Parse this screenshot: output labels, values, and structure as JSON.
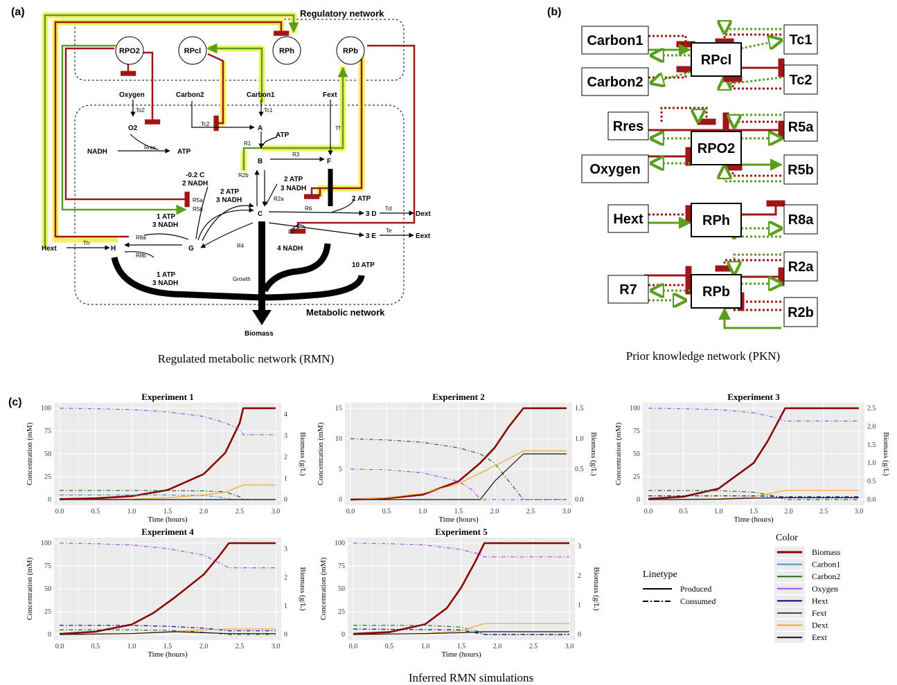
{
  "panels": {
    "a": "(a)",
    "b": "(b)",
    "c": "(c)"
  },
  "captions": {
    "rmn": "Regulated metabolic network (RMN)",
    "pkn": "Prior knowledge network (PKN)",
    "sim": "Inferred RMN simulations"
  },
  "rmn": {
    "regulatory_label": "Regulatory network",
    "metabolic_label": "Metabolic network",
    "regulators": [
      "RPO2",
      "RPcl",
      "RPh",
      "RPb"
    ],
    "metabolites": {
      "oxygen": "Oxygen",
      "carbon2": "Carbon2",
      "carbon1": "Carbon1",
      "fext": "Fext",
      "o2": "O2",
      "nadh": "NADH",
      "atp": "ATP",
      "a": "A",
      "atp2": "ATP",
      "b": "B",
      "f": "F",
      "c": "C",
      "g": "G",
      "h": "H",
      "hext": "Hext",
      "d": "3 D",
      "e": "3 E",
      "dext": "Dext",
      "eext": "Eext",
      "biomass": "Biomass",
      "m02c": "-0.2 C",
      "m2nadh": "2 NADH",
      "m2atp3nadh_a": "2 ATP",
      "m3nadh_a": "3 NADH",
      "m2atp_b": "2 ATP",
      "m3nadh_b": "3 NADH",
      "m2atp_c": "2 ATP",
      "m1atp_a": "1 ATP",
      "m3nadh_c": "3 NADH",
      "m1atp_b": "1 ATP",
      "m3nadh_d": "3 NADH",
      "m4nadh": "4 NADH",
      "m10atp": "10 ATP"
    },
    "reactions": {
      "to2": "To2",
      "tc2": "Tc2",
      "tc1": "Tc1",
      "tf": "Tf",
      "rres": "Rres",
      "r1": "R1",
      "r2b": "R2b",
      "r3": "R3",
      "r2a": "R2a",
      "r5a": "R5a",
      "r5b": "R5b",
      "r6": "R6",
      "td": "Td",
      "r7": "R7",
      "te": "Te",
      "r8a": "R8a",
      "r8b": "R8b",
      "th": "Th",
      "r4": "R4",
      "growth": "Growth"
    }
  },
  "pkn": {
    "regulators": [
      "RPcl",
      "RPO2",
      "RPh",
      "RPb"
    ],
    "left_nodes": [
      "Carbon1",
      "Carbon2",
      "Rres",
      "Oxygen",
      "Hext",
      "R7"
    ],
    "right_nodes": [
      "Tc1",
      "Tc2",
      "R5a",
      "R5b",
      "R8a",
      "R2a",
      "R2b"
    ]
  },
  "colors": {
    "activation": "#5a9e1e",
    "inhibition": "#a01515",
    "highlight": "#f2f260",
    "Biomass": "#8b0000",
    "Carbon1": "#4a8fd0",
    "Carbon2": "#1e6b1e",
    "Oxygen": "#a54ee8",
    "Hext": "#00008b",
    "Fext": "#2f4f4f",
    "Dext": "#f5a623",
    "Eext": "#111111"
  },
  "legend": {
    "linetype_title": "Linetype",
    "linetypes": [
      "Produced",
      "Consumed"
    ],
    "color_title": "Color",
    "colors": [
      "Biomass",
      "Carbon1",
      "Carbon2",
      "Oxygen",
      "Hext",
      "Fext",
      "Dext",
      "Eext"
    ]
  },
  "chart_data": [
    {
      "type": "line",
      "title": "Experiment 1",
      "xlabel": "Time (hours)",
      "ylabel": "Concentration (mM)",
      "y2label": "Biomass (g/L)",
      "xlim": [
        0,
        3
      ],
      "ylim": [
        0,
        100
      ],
      "y2lim": [
        0,
        4.3
      ],
      "xticks": [
        "0.0",
        "0.5",
        "1.0",
        "1.5",
        "2.0",
        "2.5",
        "3.0"
      ],
      "yticks": [
        "0",
        "25",
        "50",
        "75",
        "100"
      ],
      "y2ticks": [
        "0",
        "1",
        "2",
        "3",
        "4"
      ],
      "series": [
        {
          "name": "Biomass",
          "axis": "right",
          "style": "solid",
          "x": [
            0,
            0.5,
            1.0,
            1.5,
            2.0,
            2.3,
            2.5,
            2.55,
            3.0
          ],
          "y": [
            0.02,
            0.06,
            0.16,
            0.45,
            1.2,
            2.2,
            3.6,
            4.3,
            4.3
          ]
        },
        {
          "name": "Oxygen",
          "style": "dashed",
          "x": [
            0,
            0.5,
            1.0,
            1.5,
            2.0,
            2.3,
            2.5,
            2.55,
            3.0
          ],
          "y": [
            100,
            99.5,
            98.5,
            96,
            91,
            84,
            77,
            71,
            71
          ]
        },
        {
          "name": "Carbon2",
          "style": "dashed",
          "x": [
            0,
            1.0,
            2.0,
            2.3,
            2.5,
            2.55,
            3.0
          ],
          "y": [
            10,
            10,
            9.5,
            8.5,
            3,
            0,
            0
          ]
        },
        {
          "name": "Carbon1",
          "style": "dashed",
          "x": [
            0,
            1.5,
            2.0,
            2.2,
            2.4,
            3.0
          ],
          "y": [
            5,
            5,
            4.5,
            3,
            0,
            0
          ]
        },
        {
          "name": "Dext",
          "style": "solid",
          "x": [
            0,
            1.0,
            1.5,
            2.0,
            2.3,
            2.55,
            3.0
          ],
          "y": [
            0,
            0.5,
            2,
            5,
            8,
            16,
            16
          ]
        },
        {
          "name": "Eext",
          "style": "solid",
          "x": [
            0,
            3.0
          ],
          "y": [
            0,
            0
          ]
        }
      ]
    },
    {
      "type": "line",
      "title": "Experiment 2",
      "xlabel": "Time (hours)",
      "ylabel": "Concentration (mM)",
      "y2label": "Biomass (g/L)",
      "xlim": [
        0,
        3
      ],
      "ylim": [
        0,
        15
      ],
      "y2lim": [
        0,
        1.5
      ],
      "xticks": [
        "0.0",
        "0.5",
        "1.0",
        "1.5",
        "2.0",
        "2.5",
        "3.0"
      ],
      "yticks": [
        "0",
        "5",
        "10",
        "15"
      ],
      "y2ticks": [
        "0.0",
        "0.5",
        "1.0",
        "1.5"
      ],
      "series": [
        {
          "name": "Biomass",
          "axis": "right",
          "style": "solid",
          "x": [
            0,
            0.5,
            1.0,
            1.5,
            1.8,
            2.0,
            2.2,
            2.4,
            3.0
          ],
          "y": [
            0.0,
            0.02,
            0.08,
            0.3,
            0.6,
            0.85,
            1.2,
            1.5,
            1.5
          ]
        },
        {
          "name": "Carbon2",
          "style": "dashed",
          "x": [
            0,
            0.5,
            1.0,
            1.5,
            1.8,
            2.0,
            2.2,
            2.4,
            3.0
          ],
          "y": [
            10,
            9.8,
            9.4,
            8.5,
            7.5,
            6,
            3,
            0,
            0
          ]
        },
        {
          "name": "Oxygen",
          "style": "dashed",
          "x": [
            0,
            0.5,
            1.0,
            1.5,
            1.7,
            1.8,
            3.0
          ],
          "y": [
            5,
            4.9,
            4.4,
            3,
            1.5,
            0,
            0
          ]
        },
        {
          "name": "Dext",
          "style": "solid",
          "x": [
            0,
            0.5,
            1.0,
            1.5,
            2.0,
            2.4,
            3.0
          ],
          "y": [
            0,
            0.3,
            1,
            2.6,
            5.5,
            8,
            8
          ]
        },
        {
          "name": "Eext",
          "style": "solid",
          "x": [
            0,
            1.8,
            2.0,
            2.4,
            3.0
          ],
          "y": [
            0,
            0,
            3,
            7.5,
            7.5
          ]
        }
      ]
    },
    {
      "type": "line",
      "title": "Experiment 3",
      "xlabel": "Time (hours)",
      "ylabel": "Concentration (mM)",
      "y2label": "Biomass (g/L)",
      "xlim": [
        0,
        3
      ],
      "ylim": [
        0,
        100
      ],
      "y2lim": [
        0,
        2.5
      ],
      "xticks": [
        "0.0",
        "0.5",
        "1.0",
        "1.5",
        "2.0",
        "2.5",
        "3.0"
      ],
      "yticks": [
        "0",
        "25",
        "50",
        "75",
        "100"
      ],
      "y2ticks": [
        "0.0",
        "0.5",
        "1.0",
        "1.5",
        "2.0",
        "2.5"
      ],
      "series": [
        {
          "name": "Biomass",
          "axis": "right",
          "style": "solid",
          "x": [
            0,
            0.5,
            1.0,
            1.5,
            1.7,
            1.95,
            3.0
          ],
          "y": [
            0.02,
            0.08,
            0.3,
            1.0,
            1.6,
            2.5,
            2.5
          ]
        },
        {
          "name": "Oxygen",
          "style": "dashed",
          "x": [
            0,
            0.5,
            1.0,
            1.5,
            1.8,
            1.95,
            3.0
          ],
          "y": [
            100,
            99.5,
            98.5,
            95,
            90,
            86,
            86
          ]
        },
        {
          "name": "Carbon2",
          "style": "dashed",
          "x": [
            0,
            1.0,
            1.5,
            1.8,
            1.95,
            3.0
          ],
          "y": [
            10,
            9.8,
            8,
            4,
            0,
            0
          ]
        },
        {
          "name": "Hext",
          "style": "dashed",
          "x": [
            0,
            1.5,
            1.95,
            3.0
          ],
          "y": [
            4,
            4,
            3,
            3
          ]
        },
        {
          "name": "Dext",
          "style": "solid",
          "x": [
            0,
            1.0,
            1.5,
            1.95,
            3.0
          ],
          "y": [
            0,
            0.8,
            3,
            10,
            10
          ]
        },
        {
          "name": "Eext",
          "style": "solid",
          "x": [
            0,
            1.0,
            1.5,
            1.95,
            3.0
          ],
          "y": [
            0,
            0.4,
            1.5,
            2,
            2
          ]
        }
      ]
    },
    {
      "type": "line",
      "title": "Experiment 4",
      "xlabel": "Time (hours)",
      "ylabel": "Concentration (mM)",
      "y2label": "Biomass (g/L)",
      "xlim": [
        0,
        3
      ],
      "ylim": [
        0,
        100
      ],
      "y2lim": [
        0,
        3.2
      ],
      "xticks": [
        "0.0",
        "0.5",
        "1.0",
        "1.5",
        "2.0",
        "2.5",
        "3.0"
      ],
      "yticks": [
        "0",
        "25",
        "50",
        "75",
        "100"
      ],
      "y2ticks": [
        "0",
        "1",
        "2",
        "3"
      ],
      "series": [
        {
          "name": "Biomass",
          "axis": "right",
          "style": "solid",
          "x": [
            0,
            0.5,
            1.0,
            1.3,
            1.6,
            2.0,
            2.2,
            2.35,
            3.0
          ],
          "y": [
            0.02,
            0.1,
            0.35,
            0.75,
            1.3,
            2.1,
            2.7,
            3.2,
            3.2
          ]
        },
        {
          "name": "Oxygen",
          "style": "dashed",
          "x": [
            0,
            0.5,
            1.0,
            1.5,
            2.0,
            2.35,
            3.0
          ],
          "y": [
            100,
            99.5,
            98,
            94,
            87,
            73,
            73
          ]
        },
        {
          "name": "Hext",
          "style": "dashed",
          "x": [
            0,
            1.0,
            1.5,
            2.0,
            2.35,
            3.0
          ],
          "y": [
            10,
            10,
            9,
            7,
            4,
            4
          ]
        },
        {
          "name": "Carbon2",
          "style": "dashed",
          "x": [
            0,
            1.0,
            1.5,
            1.9,
            2.35,
            3.0
          ],
          "y": [
            5,
            5,
            4.5,
            3,
            0,
            0
          ]
        },
        {
          "name": "Dext",
          "style": "solid",
          "x": [
            0,
            1.0,
            1.5,
            2.0,
            2.35,
            3.0
          ],
          "y": [
            0,
            1,
            3,
            5,
            6,
            6
          ]
        },
        {
          "name": "Eext",
          "style": "solid",
          "x": [
            0,
            1.0,
            1.6,
            2.0,
            2.35,
            3.0
          ],
          "y": [
            0,
            1,
            3,
            2,
            1,
            1
          ]
        }
      ]
    },
    {
      "type": "line",
      "title": "Experiment 5",
      "xlabel": "Time (hours)",
      "ylabel": "Concentration (mM)",
      "y2label": "Biomass (g/L)",
      "xlim": [
        0,
        3
      ],
      "ylim": [
        0,
        100
      ],
      "y2lim": [
        0,
        3.1
      ],
      "xticks": [
        "0.0",
        "0.5",
        "1.0",
        "1.5",
        "2.0",
        "2.5",
        "3.0"
      ],
      "yticks": [
        "0",
        "25",
        "50",
        "75",
        "100"
      ],
      "y2ticks": [
        "0",
        "1",
        "2",
        "3"
      ],
      "series": [
        {
          "name": "Biomass",
          "axis": "right",
          "style": "solid",
          "x": [
            0,
            0.5,
            1.0,
            1.3,
            1.5,
            1.7,
            1.82,
            3.0
          ],
          "y": [
            0.02,
            0.08,
            0.35,
            0.9,
            1.6,
            2.5,
            3.1,
            3.1
          ]
        },
        {
          "name": "Oxygen",
          "style": "dashed",
          "x": [
            0,
            0.5,
            1.0,
            1.5,
            1.75,
            1.82,
            3.0
          ],
          "y": [
            100,
            99.5,
            98,
            93,
            88,
            85,
            85
          ]
        },
        {
          "name": "Carbon2",
          "style": "dashed",
          "x": [
            0,
            1.0,
            1.5,
            1.75,
            1.82,
            3.0
          ],
          "y": [
            10,
            10,
            8,
            3,
            0,
            0
          ]
        },
        {
          "name": "Hext",
          "style": "dashed",
          "x": [
            0,
            1.5,
            1.82,
            3.0
          ],
          "y": [
            6,
            5,
            0,
            0
          ]
        },
        {
          "name": "Dext",
          "style": "solid",
          "x": [
            0,
            1.0,
            1.5,
            1.82,
            3.0
          ],
          "y": [
            0,
            1,
            4,
            12,
            12
          ]
        },
        {
          "name": "Eext",
          "style": "solid",
          "x": [
            0,
            1.0,
            1.5,
            1.82,
            3.0
          ],
          "y": [
            0,
            1,
            2,
            3,
            3
          ]
        }
      ]
    }
  ]
}
